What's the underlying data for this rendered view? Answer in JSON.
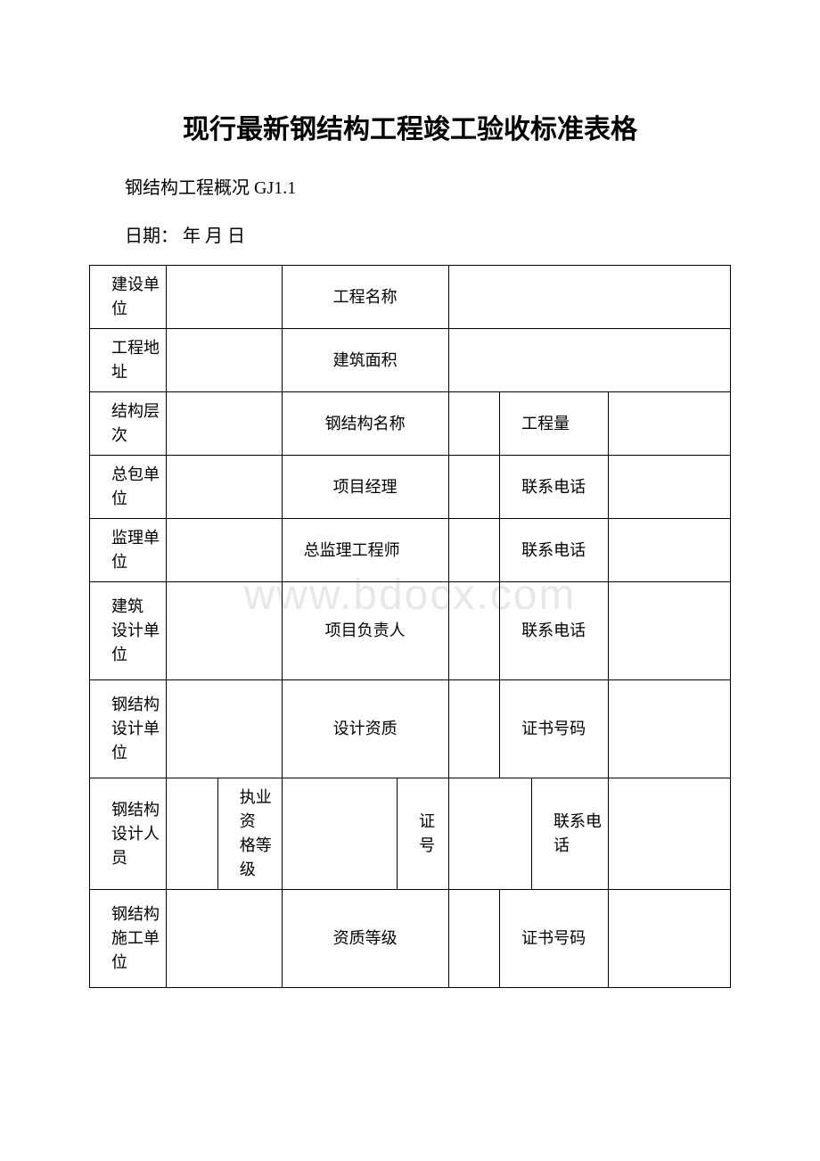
{
  "title": "现行最新钢结构工程竣工验收标准表格",
  "subtitle": "钢结构工程概况 GJ1.1",
  "date_label": "日期： 年 月 日",
  "watermark": "www.bdocx.com",
  "rows": {
    "r1": {
      "c1": "建设单位",
      "c3": "工程名称"
    },
    "r2": {
      "c1": "工程地址",
      "c3": "建筑面积"
    },
    "r3": {
      "c1": "结构层次",
      "c3": "钢结构名称",
      "c5": "工程量"
    },
    "r4": {
      "c1": "总包单位",
      "c3": "项目经理",
      "c5": "联系电话"
    },
    "r5": {
      "c1": "监理单位",
      "c3": "总监理工程师",
      "c5": "联系电话"
    },
    "r6": {
      "c1": "建筑\n设计单位",
      "c3": "项目负责人",
      "c5": "联系电话"
    },
    "r7": {
      "c1": "钢结构\n设计单位",
      "c3": "设计资质",
      "c5": "证书号码"
    },
    "r8": {
      "c1": "钢结构\n设计人员",
      "c3": "执业资\n格等级",
      "c5": "证号",
      "c7": "联系电话"
    },
    "r9": {
      "c1": "钢结构\n施工单位",
      "c3": "资质等级",
      "c5": "证书号码"
    }
  },
  "styles": {
    "text_color": "#000000",
    "border_color": "#000000",
    "background_color": "#ffffff",
    "watermark_color": "#e8e8e8",
    "title_fontsize": 30,
    "body_fontsize": 18
  }
}
